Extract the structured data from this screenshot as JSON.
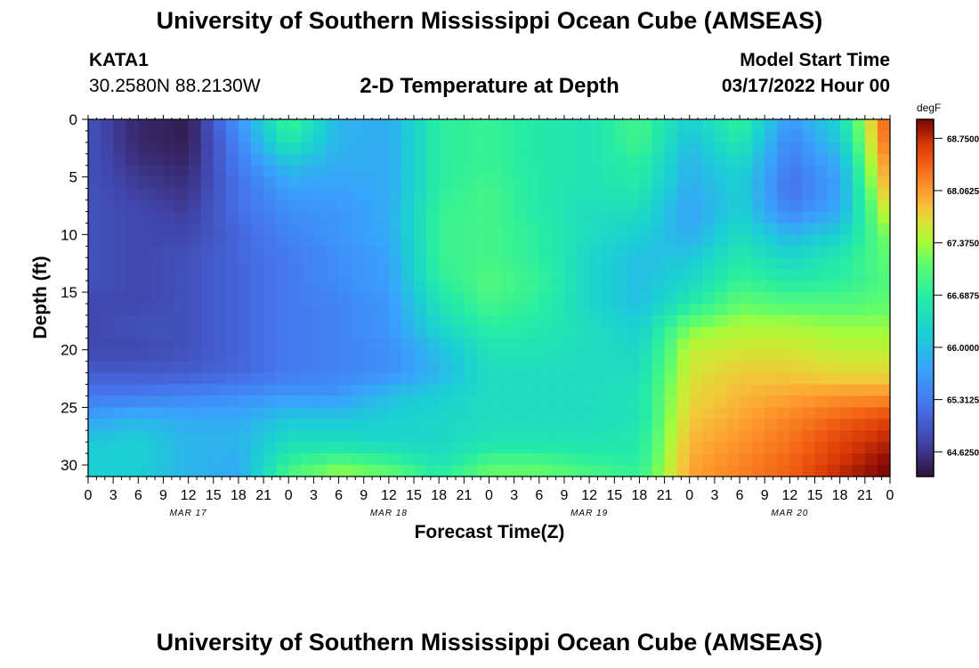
{
  "header": {
    "title": "University of Southern Mississippi Ocean Cube (AMSEAS)",
    "station_id": "KATA1",
    "station_coords": "30.2580N  88.2130W",
    "plot_heading": "2-D Temperature at Depth",
    "model_label": "Model Start Time",
    "model_time": "03/17/2022 Hour 00"
  },
  "footer": {
    "title_repeat": "University of Southern Mississippi Ocean Cube (AMSEAS)"
  },
  "chart_data": {
    "type": "heatmap",
    "title": "2-D Temperature at Depth",
    "xlabel": "Forecast Time(Z)",
    "ylabel": "Depth (ft)",
    "x_tick_labels": [
      "0",
      "3",
      "6",
      "9",
      "12",
      "15",
      "18",
      "21",
      "0",
      "3",
      "6",
      "9",
      "12",
      "15",
      "18",
      "21",
      "0",
      "3",
      "6",
      "9",
      "12",
      "15",
      "18",
      "21",
      "0",
      "3",
      "6",
      "9",
      "12",
      "15",
      "18",
      "21",
      "0"
    ],
    "date_labels": [
      "MAR 17",
      "MAR 18",
      "MAR 19",
      "MAR 20"
    ],
    "y_ticks": [
      0,
      5,
      10,
      15,
      20,
      25,
      30
    ],
    "ylim": [
      0,
      31
    ],
    "xlim_hours": [
      0,
      96
    ],
    "colorbar": {
      "unit": "degF",
      "ticks": [
        "64.6250",
        "65.3125",
        "66.0000",
        "66.6875",
        "67.3750",
        "68.0625",
        "68.7500"
      ],
      "range": [
        64.3,
        69.0
      ]
    },
    "depths_ft": [
      0,
      2,
      4,
      6,
      8,
      10,
      12,
      14,
      16,
      18,
      20,
      22,
      24,
      26,
      28,
      30,
      31
    ],
    "times_hours": [
      0,
      6,
      12,
      18,
      24,
      30,
      36,
      42,
      48,
      54,
      60,
      66,
      72,
      78,
      84,
      90,
      96
    ],
    "values_degF": [
      [
        64.9,
        64.5,
        64.4,
        65.6,
        66.9,
        65.9,
        65.8,
        66.7,
        66.8,
        66.6,
        66.5,
        66.9,
        66.2,
        66.8,
        65.6,
        66.3,
        68.6
      ],
      [
        64.9,
        64.5,
        64.4,
        65.4,
        66.6,
        65.9,
        65.8,
        66.7,
        66.8,
        66.6,
        66.5,
        66.9,
        66.0,
        66.6,
        65.4,
        66.1,
        68.5
      ],
      [
        64.9,
        64.6,
        64.5,
        65.3,
        66.0,
        65.8,
        65.8,
        66.7,
        66.8,
        66.6,
        66.5,
        66.7,
        65.9,
        66.3,
        65.3,
        65.8,
        68.3
      ],
      [
        64.9,
        64.7,
        64.6,
        65.2,
        65.7,
        65.7,
        65.8,
        66.7,
        66.9,
        66.6,
        66.5,
        66.6,
        65.8,
        66.2,
        65.2,
        65.7,
        68.1
      ],
      [
        64.9,
        64.8,
        64.7,
        65.2,
        65.5,
        65.6,
        65.8,
        66.8,
        66.9,
        66.6,
        66.4,
        66.4,
        65.7,
        66.2,
        65.4,
        65.8,
        67.7
      ],
      [
        64.9,
        64.8,
        64.8,
        65.1,
        65.4,
        65.6,
        65.8,
        66.8,
        66.9,
        66.7,
        66.4,
        66.2,
        65.8,
        66.4,
        65.9,
        66.2,
        67.3
      ],
      [
        64.9,
        64.8,
        64.9,
        65.1,
        65.3,
        65.5,
        65.7,
        66.8,
        66.9,
        66.7,
        66.3,
        66.0,
        66.1,
        66.6,
        66.3,
        66.6,
        67.1
      ],
      [
        64.9,
        64.8,
        64.9,
        65.1,
        65.3,
        65.5,
        65.7,
        66.7,
        67.0,
        66.8,
        66.3,
        66.0,
        66.3,
        66.8,
        66.6,
        66.7,
        67.0
      ],
      [
        64.8,
        64.8,
        64.9,
        65.1,
        65.3,
        65.4,
        65.6,
        66.5,
        66.9,
        66.7,
        66.3,
        66.0,
        66.6,
        67.1,
        67.0,
        67.0,
        67.1
      ],
      [
        64.8,
        64.9,
        64.9,
        65.1,
        65.3,
        65.4,
        65.6,
        66.3,
        66.7,
        66.6,
        66.4,
        66.2,
        67.2,
        67.4,
        67.4,
        67.3,
        67.3
      ],
      [
        64.8,
        64.8,
        64.9,
        65.1,
        65.3,
        65.4,
        65.5,
        66.0,
        66.5,
        66.5,
        66.4,
        66.3,
        67.5,
        67.6,
        67.6,
        67.5,
        67.5
      ],
      [
        65.0,
        65.0,
        65.0,
        65.1,
        65.3,
        65.4,
        65.5,
        65.9,
        66.4,
        66.4,
        66.4,
        66.4,
        67.6,
        67.8,
        67.8,
        67.7,
        67.7
      ],
      [
        65.3,
        65.3,
        65.4,
        65.5,
        65.6,
        65.6,
        66.0,
        66.2,
        66.4,
        66.4,
        66.4,
        66.5,
        67.7,
        67.9,
        68.0,
        68.1,
        68.1
      ],
      [
        65.7,
        65.9,
        65.8,
        65.8,
        66.1,
        66.1,
        66.2,
        66.3,
        66.4,
        66.4,
        66.4,
        66.5,
        67.8,
        68.0,
        68.2,
        68.4,
        68.6
      ],
      [
        66.1,
        66.2,
        65.9,
        65.9,
        66.4,
        66.4,
        66.3,
        66.3,
        66.5,
        66.5,
        66.5,
        66.6,
        67.9,
        68.1,
        68.3,
        68.6,
        68.8
      ],
      [
        66.2,
        66.2,
        65.9,
        65.8,
        66.8,
        67.1,
        66.9,
        66.5,
        67.0,
        67.0,
        66.8,
        66.7,
        68.0,
        68.2,
        68.4,
        68.7,
        69.0
      ],
      [
        66.2,
        66.2,
        65.9,
        65.8,
        67.0,
        67.4,
        67.2,
        66.7,
        67.2,
        67.2,
        67.0,
        66.8,
        68.0,
        68.2,
        68.4,
        68.8,
        69.0
      ]
    ]
  }
}
